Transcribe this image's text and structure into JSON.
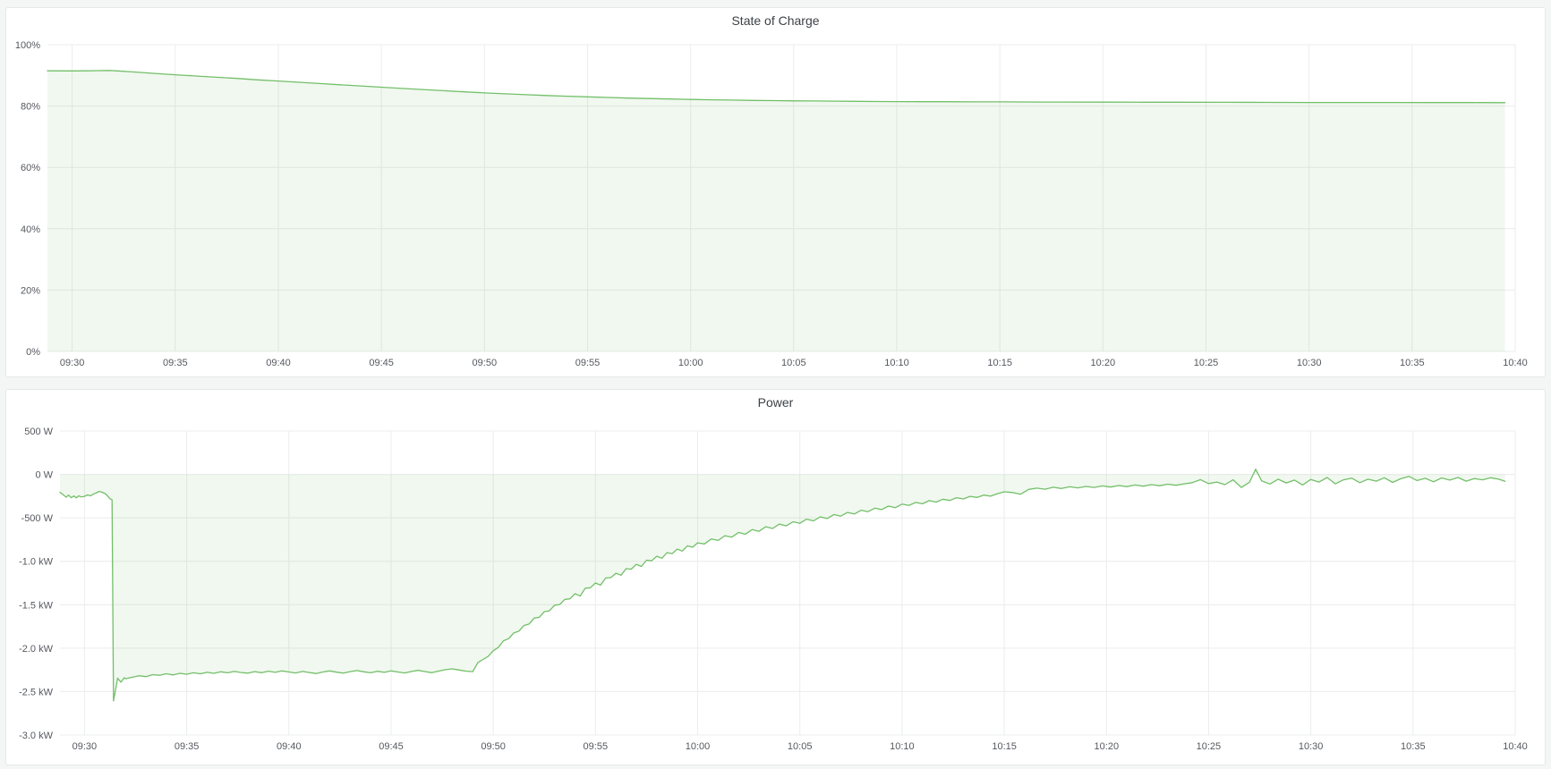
{
  "colors": {
    "series_line": "#73bf69",
    "series_fill": "rgba(115,191,105,0.11)",
    "grid": "#ebecec",
    "axis_text": "#55585e",
    "title_text": "#3c4146",
    "card_bg": "#ffffff",
    "page_bg": "#f4f5f5"
  },
  "chart_data": [
    {
      "id": "soc",
      "type": "area",
      "title": "State of Charge",
      "xlabel": "",
      "ylabel": "",
      "legend": "none",
      "grid": "on",
      "x_domain": [
        -1.2,
        70.0
      ],
      "y_domain": [
        0,
        100
      ],
      "baseline": 0,
      "layout": {
        "margin_left": 46,
        "margin_right": 33,
        "margin_top": 17,
        "margin_bottom": 28
      },
      "y_ticks": [
        {
          "v": 100,
          "label": "100%"
        },
        {
          "v": 80,
          "label": "80%"
        },
        {
          "v": 60,
          "label": "60%"
        },
        {
          "v": 40,
          "label": "40%"
        },
        {
          "v": 20,
          "label": "20%"
        },
        {
          "v": 0,
          "label": "0%"
        }
      ],
      "x_ticks": [
        {
          "t": 0,
          "label": "09:30"
        },
        {
          "t": 5,
          "label": "09:35"
        },
        {
          "t": 10,
          "label": "09:40"
        },
        {
          "t": 15,
          "label": "09:45"
        },
        {
          "t": 20,
          "label": "09:50"
        },
        {
          "t": 25,
          "label": "09:55"
        },
        {
          "t": 30,
          "label": "10:00"
        },
        {
          "t": 35,
          "label": "10:05"
        },
        {
          "t": 40,
          "label": "10:10"
        },
        {
          "t": 45,
          "label": "10:15"
        },
        {
          "t": 50,
          "label": "10:20"
        },
        {
          "t": 55,
          "label": "10:25"
        },
        {
          "t": 60,
          "label": "10:30"
        },
        {
          "t": 65,
          "label": "10:35"
        },
        {
          "t": 70,
          "label": "10:40"
        }
      ],
      "points": [
        [
          -1.2,
          91.5
        ],
        [
          0,
          91.45
        ],
        [
          0.7,
          91.5
        ],
        [
          1.3,
          91.55
        ],
        [
          1.8,
          91.6
        ],
        [
          2.2,
          91.45
        ],
        [
          3,
          91.1
        ],
        [
          4,
          90.65
        ],
        [
          5,
          90.2
        ],
        [
          6,
          89.8
        ],
        [
          7,
          89.4
        ],
        [
          8,
          89.0
        ],
        [
          9,
          88.55
        ],
        [
          10,
          88.15
        ],
        [
          11,
          87.75
        ],
        [
          12,
          87.35
        ],
        [
          13,
          86.95
        ],
        [
          14,
          86.55
        ],
        [
          15,
          86.15
        ],
        [
          16,
          85.75
        ],
        [
          17,
          85.4
        ],
        [
          18,
          85.0
        ],
        [
          19,
          84.65
        ],
        [
          20,
          84.3
        ],
        [
          21,
          84.0
        ],
        [
          22,
          83.7
        ],
        [
          23,
          83.45
        ],
        [
          24,
          83.2
        ],
        [
          25,
          83.0
        ],
        [
          26,
          82.8
        ],
        [
          27,
          82.6
        ],
        [
          28,
          82.45
        ],
        [
          29,
          82.3
        ],
        [
          30,
          82.15
        ],
        [
          31,
          82.05
        ],
        [
          32,
          81.95
        ],
        [
          33,
          81.85
        ],
        [
          34,
          81.78
        ],
        [
          35,
          81.7
        ],
        [
          36,
          81.65
        ],
        [
          37,
          81.6
        ],
        [
          38,
          81.55
        ],
        [
          39,
          81.5
        ],
        [
          40,
          81.47
        ],
        [
          41,
          81.44
        ],
        [
          42,
          81.42
        ],
        [
          43,
          81.4
        ],
        [
          44,
          81.38
        ],
        [
          45,
          81.36
        ],
        [
          46,
          81.34
        ],
        [
          47,
          81.32
        ],
        [
          48,
          81.3
        ],
        [
          50,
          81.28
        ],
        [
          52,
          81.26
        ],
        [
          54,
          81.24
        ],
        [
          56,
          81.22
        ],
        [
          58,
          81.2
        ],
        [
          60,
          81.18
        ],
        [
          62,
          81.17
        ],
        [
          64,
          81.16
        ],
        [
          66,
          81.15
        ],
        [
          68,
          81.14
        ],
        [
          69.5,
          81.12
        ]
      ]
    },
    {
      "id": "power",
      "type": "area",
      "title": "Power",
      "xlabel": "",
      "ylabel": "",
      "legend": "none",
      "grid": "on",
      "x_domain": [
        -1.2,
        70.0
      ],
      "y_domain": [
        -3000,
        500
      ],
      "baseline": 0,
      "layout": {
        "margin_left": 60,
        "margin_right": 33,
        "margin_top": 22,
        "margin_bottom": 33
      },
      "y_ticks": [
        {
          "v": 500,
          "label": "500 W"
        },
        {
          "v": 0,
          "label": "0 W"
        },
        {
          "v": -500,
          "label": "-500 W"
        },
        {
          "v": -1000,
          "label": "-1.0 kW"
        },
        {
          "v": -1500,
          "label": "-1.5 kW"
        },
        {
          "v": -2000,
          "label": "-2.0 kW"
        },
        {
          "v": -2500,
          "label": "-2.5 kW"
        },
        {
          "v": -3000,
          "label": "-3.0 kW"
        }
      ],
      "x_ticks": [
        {
          "t": 0,
          "label": "09:30"
        },
        {
          "t": 5,
          "label": "09:35"
        },
        {
          "t": 10,
          "label": "09:40"
        },
        {
          "t": 15,
          "label": "09:45"
        },
        {
          "t": 20,
          "label": "09:50"
        },
        {
          "t": 25,
          "label": "09:55"
        },
        {
          "t": 30,
          "label": "10:00"
        },
        {
          "t": 35,
          "label": "10:05"
        },
        {
          "t": 40,
          "label": "10:10"
        },
        {
          "t": 45,
          "label": "10:15"
        },
        {
          "t": 50,
          "label": "10:20"
        },
        {
          "t": 55,
          "label": "10:25"
        },
        {
          "t": 60,
          "label": "10:30"
        },
        {
          "t": 65,
          "label": "10:35"
        },
        {
          "t": 70,
          "label": "10:40"
        }
      ],
      "points": [
        [
          -1.2,
          -205
        ],
        [
          -1.05,
          -232
        ],
        [
          -0.9,
          -262
        ],
        [
          -0.78,
          -238
        ],
        [
          -0.65,
          -268
        ],
        [
          -0.52,
          -248
        ],
        [
          -0.4,
          -270
        ],
        [
          -0.28,
          -246
        ],
        [
          -0.15,
          -260
        ],
        [
          0,
          -252
        ],
        [
          0.15,
          -236
        ],
        [
          0.3,
          -246
        ],
        [
          0.45,
          -224
        ],
        [
          0.6,
          -210
        ],
        [
          0.72,
          -196
        ],
        [
          0.85,
          -204
        ],
        [
          1.0,
          -220
        ],
        [
          1.12,
          -245
        ],
        [
          1.25,
          -280
        ],
        [
          1.35,
          -292
        ],
        [
          1.42,
          -2608
        ],
        [
          1.52,
          -2480
        ],
        [
          1.62,
          -2345
        ],
        [
          1.78,
          -2392
        ],
        [
          1.95,
          -2340
        ],
        [
          2.0,
          -2352
        ],
        [
          2.33,
          -2335
        ],
        [
          2.67,
          -2318
        ],
        [
          3.0,
          -2328
        ],
        [
          3.33,
          -2305
        ],
        [
          3.67,
          -2312
        ],
        [
          4.0,
          -2295
        ],
        [
          4.33,
          -2308
        ],
        [
          4.67,
          -2290
        ],
        [
          5.0,
          -2300
        ],
        [
          5.33,
          -2284
        ],
        [
          5.67,
          -2295
        ],
        [
          6.0,
          -2278
        ],
        [
          6.33,
          -2290
        ],
        [
          6.67,
          -2272
        ],
        [
          7.0,
          -2284
        ],
        [
          7.33,
          -2268
        ],
        [
          7.67,
          -2280
        ],
        [
          8.0,
          -2288
        ],
        [
          8.33,
          -2270
        ],
        [
          8.67,
          -2282
        ],
        [
          9.0,
          -2265
        ],
        [
          9.33,
          -2278
        ],
        [
          9.67,
          -2262
        ],
        [
          10.0,
          -2274
        ],
        [
          10.33,
          -2286
        ],
        [
          10.67,
          -2268
        ],
        [
          11.0,
          -2280
        ],
        [
          11.33,
          -2292
        ],
        [
          11.67,
          -2274
        ],
        [
          12.0,
          -2262
        ],
        [
          12.33,
          -2276
        ],
        [
          12.67,
          -2288
        ],
        [
          13.0,
          -2270
        ],
        [
          13.33,
          -2258
        ],
        [
          13.67,
          -2272
        ],
        [
          14.0,
          -2284
        ],
        [
          14.33,
          -2266
        ],
        [
          14.67,
          -2278
        ],
        [
          15.0,
          -2262
        ],
        [
          15.33,
          -2274
        ],
        [
          15.67,
          -2286
        ],
        [
          16.0,
          -2268
        ],
        [
          16.33,
          -2256
        ],
        [
          16.67,
          -2270
        ],
        [
          17.0,
          -2282
        ],
        [
          17.33,
          -2264
        ],
        [
          17.67,
          -2248
        ],
        [
          18.0,
          -2238
        ],
        [
          18.33,
          -2252
        ],
        [
          18.67,
          -2265
        ],
        [
          19.0,
          -2270
        ],
        [
          19.25,
          -2165
        ],
        [
          19.5,
          -2130
        ],
        [
          19.75,
          -2095
        ],
        [
          20.0,
          -2030
        ],
        [
          20.25,
          -1990
        ],
        [
          20.5,
          -1915
        ],
        [
          20.75,
          -1890
        ],
        [
          21.0,
          -1825
        ],
        [
          21.25,
          -1805
        ],
        [
          21.5,
          -1740
        ],
        [
          21.75,
          -1722
        ],
        [
          22.0,
          -1655
        ],
        [
          22.25,
          -1645
        ],
        [
          22.5,
          -1580
        ],
        [
          22.75,
          -1570
        ],
        [
          23.0,
          -1505
        ],
        [
          23.25,
          -1498
        ],
        [
          23.5,
          -1438
        ],
        [
          23.75,
          -1432
        ],
        [
          24.0,
          -1372
        ],
        [
          24.25,
          -1400
        ],
        [
          24.5,
          -1310
        ],
        [
          24.75,
          -1305
        ],
        [
          25.0,
          -1250
        ],
        [
          25.25,
          -1275
        ],
        [
          25.5,
          -1192
        ],
        [
          25.75,
          -1188
        ],
        [
          26.0,
          -1138
        ],
        [
          26.25,
          -1160
        ],
        [
          26.5,
          -1085
        ],
        [
          26.75,
          -1090
        ],
        [
          27.0,
          -1035
        ],
        [
          27.25,
          -1060
        ],
        [
          27.5,
          -988
        ],
        [
          27.75,
          -995
        ],
        [
          28.0,
          -942
        ],
        [
          28.25,
          -965
        ],
        [
          28.5,
          -900
        ],
        [
          28.75,
          -912
        ],
        [
          29.0,
          -860
        ],
        [
          29.25,
          -882
        ],
        [
          29.5,
          -822
        ],
        [
          29.75,
          -838
        ],
        [
          30.0,
          -788
        ],
        [
          30.33,
          -800
        ],
        [
          30.67,
          -742
        ],
        [
          31.0,
          -760
        ],
        [
          31.33,
          -705
        ],
        [
          31.67,
          -722
        ],
        [
          32.0,
          -668
        ],
        [
          32.33,
          -688
        ],
        [
          32.67,
          -635
        ],
        [
          33.0,
          -655
        ],
        [
          33.33,
          -602
        ],
        [
          33.67,
          -622
        ],
        [
          34.0,
          -572
        ],
        [
          34.33,
          -592
        ],
        [
          34.67,
          -545
        ],
        [
          35.0,
          -562
        ],
        [
          35.33,
          -515
        ],
        [
          35.67,
          -535
        ],
        [
          36.0,
          -488
        ],
        [
          36.33,
          -508
        ],
        [
          36.67,
          -462
        ],
        [
          37.0,
          -480
        ],
        [
          37.33,
          -438
        ],
        [
          37.67,
          -455
        ],
        [
          38.0,
          -412
        ],
        [
          38.33,
          -430
        ],
        [
          38.67,
          -388
        ],
        [
          39.0,
          -405
        ],
        [
          39.33,
          -365
        ],
        [
          39.67,
          -382
        ],
        [
          40.0,
          -342
        ],
        [
          40.33,
          -358
        ],
        [
          40.67,
          -322
        ],
        [
          41.0,
          -338
        ],
        [
          41.33,
          -302
        ],
        [
          41.67,
          -318
        ],
        [
          42.0,
          -285
        ],
        [
          42.33,
          -300
        ],
        [
          42.67,
          -268
        ],
        [
          43.0,
          -282
        ],
        [
          43.33,
          -252
        ],
        [
          43.67,
          -265
        ],
        [
          44.0,
          -238
        ],
        [
          44.33,
          -250
        ],
        [
          44.67,
          -222
        ],
        [
          45.0,
          -200
        ],
        [
          45.4,
          -208
        ],
        [
          45.8,
          -228
        ],
        [
          46.2,
          -172
        ],
        [
          46.6,
          -158
        ],
        [
          47.0,
          -170
        ],
        [
          47.4,
          -148
        ],
        [
          47.8,
          -162
        ],
        [
          48.2,
          -142
        ],
        [
          48.6,
          -155
        ],
        [
          49.0,
          -138
        ],
        [
          49.4,
          -150
        ],
        [
          49.8,
          -132
        ],
        [
          50.2,
          -145
        ],
        [
          50.6,
          -128
        ],
        [
          51.0,
          -140
        ],
        [
          51.4,
          -122
        ],
        [
          51.8,
          -135
        ],
        [
          52.2,
          -118
        ],
        [
          52.6,
          -130
        ],
        [
          53.0,
          -112
        ],
        [
          53.4,
          -125
        ],
        [
          53.8,
          -108
        ],
        [
          54.2,
          -95
        ],
        [
          54.6,
          -60
        ],
        [
          55.0,
          -105
        ],
        [
          55.4,
          -88
        ],
        [
          55.8,
          -118
        ],
        [
          56.2,
          -62
        ],
        [
          56.6,
          -150
        ],
        [
          57.0,
          -90
        ],
        [
          57.3,
          60
        ],
        [
          57.6,
          -75
        ],
        [
          58.0,
          -110
        ],
        [
          58.4,
          -55
        ],
        [
          58.8,
          -98
        ],
        [
          59.2,
          -65
        ],
        [
          59.6,
          -122
        ],
        [
          60.0,
          -58
        ],
        [
          60.4,
          -88
        ],
        [
          60.8,
          -35
        ],
        [
          61.2,
          -108
        ],
        [
          61.6,
          -62
        ],
        [
          62.0,
          -42
        ],
        [
          62.4,
          -95
        ],
        [
          62.8,
          -55
        ],
        [
          63.2,
          -78
        ],
        [
          63.6,
          -38
        ],
        [
          64.0,
          -92
        ],
        [
          64.4,
          -50
        ],
        [
          64.8,
          -22
        ],
        [
          65.2,
          -70
        ],
        [
          65.6,
          -45
        ],
        [
          66.0,
          -85
        ],
        [
          66.4,
          -40
        ],
        [
          66.8,
          -65
        ],
        [
          67.2,
          -35
        ],
        [
          67.6,
          -78
        ],
        [
          68.0,
          -48
        ],
        [
          68.4,
          -62
        ],
        [
          68.8,
          -38
        ],
        [
          69.2,
          -55
        ],
        [
          69.5,
          -80
        ]
      ]
    }
  ]
}
